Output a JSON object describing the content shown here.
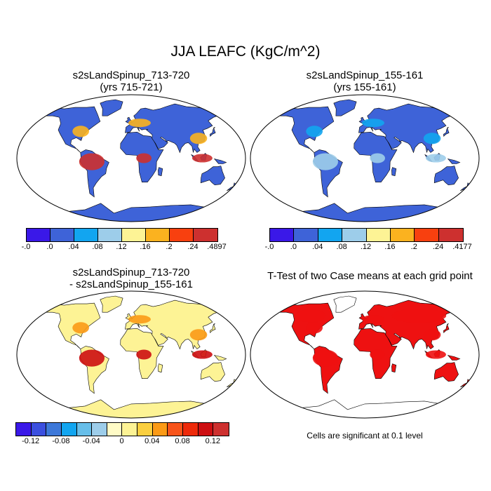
{
  "page": {
    "title": "JJA LEAFC (KgC/m^2)",
    "significance_note": "Cells are significant at 0.1 level"
  },
  "chart_data": [
    {
      "type": "heatmap",
      "title": "s2sLandSpinup_713-720",
      "subtitle": "(yrs 715-721)",
      "colorbar": {
        "colors": [
          "#3a18e8",
          "#3e63d8",
          "#12a5f0",
          "#9dcdea",
          "#fdf395",
          "#fbb21f",
          "#f8400f",
          "#cd302f"
        ],
        "tick_labels": [
          "-.0",
          ".0",
          ".04",
          ".08",
          ".12",
          ".16",
          ".2",
          ".24",
          ".4897"
        ]
      }
    },
    {
      "type": "heatmap",
      "title": "s2sLandSpinup_155-161",
      "subtitle": "(yrs 155-161)",
      "colorbar": {
        "colors": [
          "#3a18e8",
          "#3e63d8",
          "#12a5f0",
          "#9dcdea",
          "#fdf395",
          "#fbb21f",
          "#f8400f",
          "#cd302f"
        ],
        "tick_labels": [
          "-.0",
          ".0",
          ".04",
          ".08",
          ".12",
          ".16",
          ".2",
          ".24",
          ".4177"
        ]
      }
    },
    {
      "type": "heatmap",
      "title": "s2sLandSpinup_713-720",
      "subtitle": "- s2sLandSpinup_155-161",
      "colorbar": {
        "colors": [
          "#3a18e8",
          "#3b4fdf",
          "#3d78d9",
          "#12a5f0",
          "#67bee9",
          "#9dcdea",
          "#fffbc6",
          "#fdf395",
          "#fbcf3f",
          "#fb9a16",
          "#f8541a",
          "#ee2a0a",
          "#cd0e11",
          "#cd302f"
        ],
        "tick_labels": [
          "-0.12",
          "-0.08",
          "-0.04",
          "0",
          "0.04",
          "0.08",
          "0.12"
        ]
      }
    },
    {
      "type": "heatmap",
      "title": "T-Test of two Case means at each grid point",
      "colors": {
        "significant": "#ee1111"
      }
    }
  ]
}
